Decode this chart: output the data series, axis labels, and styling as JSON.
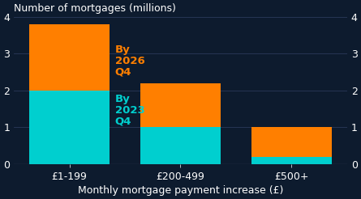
{
  "categories": [
    "£1-199",
    "£200-499",
    "£500+"
  ],
  "values_2023": [
    2.0,
    1.0,
    0.2
  ],
  "values_2026_extra": [
    1.8,
    1.2,
    0.8
  ],
  "color_2023": "#00CFCF",
  "color_2026": "#FF7F00",
  "background_color": "#0D1B2E",
  "text_color": "#FFFFFF",
  "title": "Number of mortgages (millions)",
  "xlabel": "Monthly mortgage payment increase (£)",
  "ylim": [
    0,
    4
  ],
  "yticks": [
    0,
    1,
    2,
    3,
    4
  ],
  "label_2023": "By\n2023\nQ4",
  "label_2026": "By\n2026\nQ4",
  "bar_width": 0.72,
  "grid_color": "#2a3a5a",
  "label_fontsize": 9.5
}
